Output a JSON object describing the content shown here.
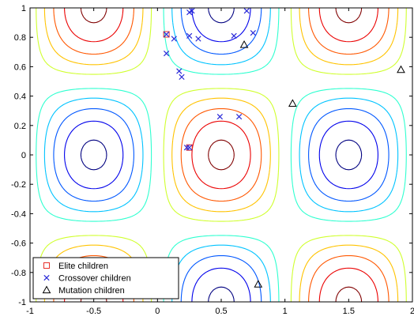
{
  "chart_data": {
    "type": "scatter",
    "title": "",
    "xlabel": "",
    "ylabel": "",
    "xlim": [
      -1,
      2
    ],
    "ylim": [
      -1,
      1
    ],
    "xticks": [
      -1,
      -0.5,
      0,
      0.5,
      1,
      1.5,
      2
    ],
    "xtick_labels": [
      "-1",
      "-0.5",
      "0",
      "0.5",
      "1",
      "1.5",
      "2"
    ],
    "yticks": [
      1,
      0.8,
      0.6,
      0.4,
      0.2,
      0,
      -0.2,
      -0.4,
      -0.6,
      -0.8,
      -1
    ],
    "ytick_labels": [
      "1",
      "0.8",
      "0.6",
      "0.4",
      "0.2",
      "0",
      "-0.2",
      "-0.4",
      "-0.6",
      "-0.8",
      "-1"
    ],
    "grid": false,
    "legend_position": "bottom-left",
    "background_contours": {
      "function": "sin(pi*x)*cos(pi*y)",
      "levels": [
        -0.95,
        -0.75,
        -0.55,
        -0.35,
        -0.15,
        0.15,
        0.35,
        0.55,
        0.75,
        0.95
      ],
      "colormap": "jet"
    },
    "series": [
      {
        "name": "Elite children",
        "marker": "square",
        "color": "#e8302a",
        "points": [
          [
            0.07,
            0.82
          ],
          [
            0.25,
            0.05
          ]
        ]
      },
      {
        "name": "Crossover children",
        "marker": "x",
        "color": "#2a2ad8",
        "points": [
          [
            0.07,
            0.82
          ],
          [
            0.07,
            0.69
          ],
          [
            0.13,
            0.79
          ],
          [
            0.25,
            0.97
          ],
          [
            0.27,
            0.98
          ],
          [
            0.25,
            0.81
          ],
          [
            0.32,
            0.79
          ],
          [
            0.17,
            0.57
          ],
          [
            0.19,
            0.53
          ],
          [
            0.25,
            0.05
          ],
          [
            0.23,
            0.05
          ],
          [
            0.49,
            0.26
          ],
          [
            0.6,
            0.81
          ],
          [
            0.64,
            0.26
          ],
          [
            0.7,
            0.98
          ],
          [
            0.75,
            0.83
          ]
        ]
      },
      {
        "name": "Mutation children",
        "marker": "triangle",
        "color": "#000000",
        "points": [
          [
            0.68,
            0.75
          ],
          [
            1.06,
            0.35
          ],
          [
            1.91,
            0.58
          ],
          [
            0.79,
            -0.88
          ]
        ]
      }
    ]
  }
}
